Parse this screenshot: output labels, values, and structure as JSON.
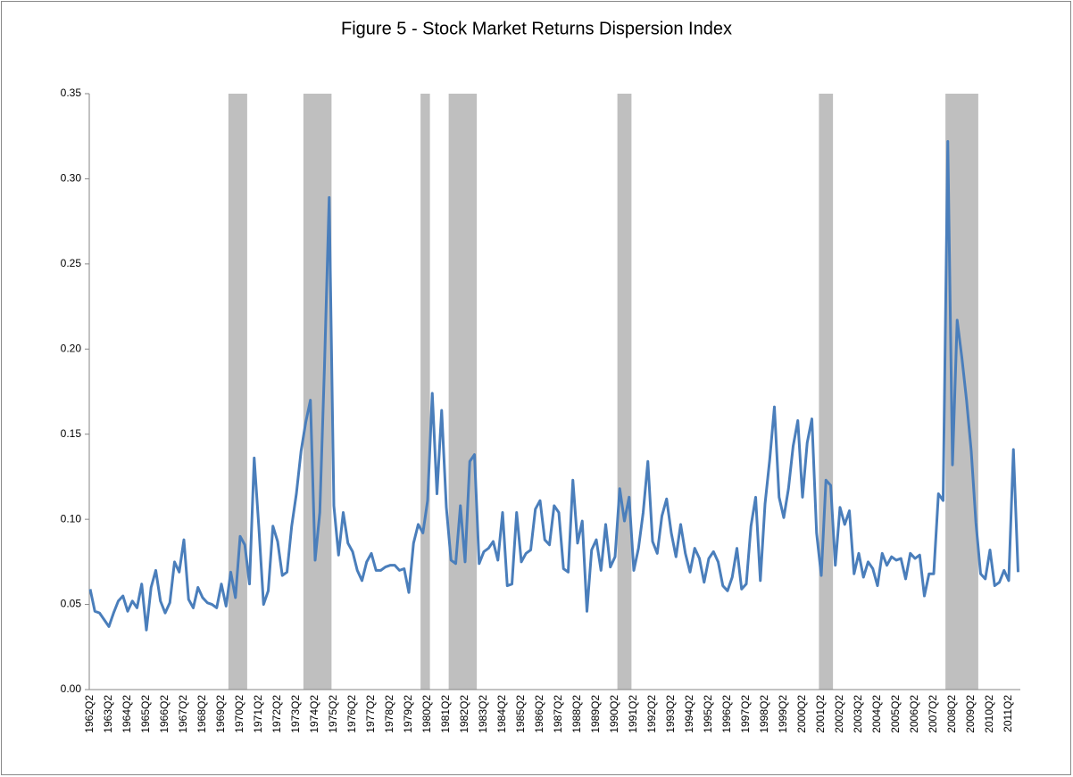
{
  "chart_data": {
    "type": "line",
    "title": "Figure 5 - Stock Market Returns Dispersion Index",
    "color": "#4a7ebb",
    "shade_color": "#bfbfbf",
    "shaded_ranges": [
      [
        30,
        34
      ],
      [
        46,
        52
      ],
      [
        71,
        73
      ],
      [
        77,
        83
      ],
      [
        113,
        116
      ],
      [
        156,
        159
      ],
      [
        183,
        190
      ]
    ],
    "ylim": [
      0,
      0.35
    ],
    "yticks": [
      {
        "value": 0,
        "label": "0.00"
      },
      0.05,
      {
        "value": 0.1,
        "label": "0.10"
      },
      0.15,
      {
        "value": 0.2,
        "label": "0.20"
      },
      0.25,
      {
        "value": 0.3,
        "label": "0.30"
      },
      0.35
    ],
    "categories": [
      "1962Q2",
      null,
      null,
      null,
      "1963Q2",
      null,
      null,
      null,
      "1964Q2",
      null,
      null,
      null,
      "1965Q2",
      null,
      null,
      null,
      "1966Q2",
      null,
      null,
      null,
      "1967Q2",
      null,
      null,
      null,
      "1968Q2",
      null,
      null,
      null,
      "1969Q2",
      null,
      null,
      null,
      "1970Q2",
      null,
      null,
      null,
      "1971Q2",
      null,
      null,
      null,
      "1972Q2",
      null,
      null,
      null,
      "1973Q2",
      null,
      null,
      null,
      "1974Q2",
      null,
      null,
      null,
      "1975Q2",
      null,
      null,
      null,
      "1976Q2",
      null,
      null,
      null,
      "1977Q2",
      null,
      null,
      null,
      "1978Q2",
      null,
      null,
      null,
      "1979Q2",
      null,
      null,
      null,
      "1980Q2",
      null,
      null,
      null,
      "1981Q2",
      null,
      null,
      null,
      "1982Q2",
      null,
      null,
      null,
      "1983Q2",
      null,
      null,
      null,
      "1984Q2",
      null,
      null,
      null,
      "1985Q2",
      null,
      null,
      null,
      "1986Q2",
      null,
      null,
      null,
      "1987Q2",
      null,
      null,
      null,
      "1988Q2",
      null,
      null,
      null,
      "1989Q2",
      null,
      null,
      null,
      "1990Q2",
      null,
      null,
      null,
      "1991Q2",
      null,
      null,
      null,
      "1992Q2",
      null,
      null,
      null,
      "1993Q2",
      null,
      null,
      null,
      "1994Q2",
      null,
      null,
      null,
      "1995Q2",
      null,
      null,
      null,
      "1996Q2",
      null,
      null,
      null,
      "1997Q2",
      null,
      null,
      null,
      "1998Q2",
      null,
      null,
      null,
      "1999Q2",
      null,
      null,
      null,
      "2000Q2",
      null,
      null,
      null,
      "2001Q2",
      null,
      null,
      null,
      "2002Q2",
      null,
      null,
      null,
      "2003Q2",
      null,
      null,
      null,
      "2004Q2",
      null,
      null,
      null,
      "2005Q2",
      null,
      null,
      null,
      "2006Q2",
      null,
      null,
      null,
      "2007Q2",
      null,
      null,
      null,
      "2008Q2",
      null,
      null,
      null,
      "2009Q2",
      null,
      null,
      null,
      "2010Q2",
      null,
      null,
      null,
      "2011Q2",
      null,
      null
    ],
    "values": [
      0.059,
      0.046,
      0.045,
      0.041,
      0.037,
      0.045,
      0.052,
      0.055,
      0.046,
      0.052,
      0.048,
      0.062,
      0.035,
      0.06,
      0.07,
      0.052,
      0.045,
      0.051,
      0.075,
      0.069,
      0.088,
      0.053,
      0.048,
      0.06,
      0.054,
      0.051,
      0.05,
      0.048,
      0.062,
      0.049,
      0.069,
      0.054,
      0.09,
      0.085,
      0.062,
      0.136,
      0.095,
      0.05,
      0.058,
      0.096,
      0.087,
      0.067,
      0.069,
      0.096,
      0.115,
      0.14,
      0.157,
      0.17,
      0.076,
      0.104,
      0.19,
      0.289,
      0.108,
      0.079,
      0.104,
      0.086,
      0.081,
      0.07,
      0.064,
      0.075,
      0.08,
      0.07,
      0.07,
      0.072,
      0.073,
      0.073,
      0.07,
      0.071,
      0.057,
      0.086,
      0.097,
      0.092,
      0.111,
      0.174,
      0.115,
      0.164,
      0.107,
      0.076,
      0.074,
      0.108,
      0.075,
      0.134,
      0.138,
      0.074,
      0.081,
      0.083,
      0.087,
      0.076,
      0.104,
      0.061,
      0.062,
      0.104,
      0.075,
      0.08,
      0.082,
      0.106,
      0.111,
      0.088,
      0.085,
      0.108,
      0.104,
      0.071,
      0.069,
      0.123,
      0.086,
      0.099,
      0.046,
      0.082,
      0.088,
      0.07,
      0.097,
      0.072,
      0.078,
      0.118,
      0.099,
      0.113,
      0.07,
      0.083,
      0.104,
      0.134,
      0.087,
      0.08,
      0.102,
      0.112,
      0.092,
      0.078,
      0.097,
      0.08,
      0.069,
      0.083,
      0.077,
      0.063,
      0.077,
      0.081,
      0.075,
      0.061,
      0.058,
      0.066,
      0.083,
      0.059,
      0.062,
      0.096,
      0.113,
      0.064,
      0.109,
      0.135,
      0.166,
      0.113,
      0.101,
      0.118,
      0.143,
      0.158,
      0.113,
      0.145,
      0.159,
      0.092,
      0.067,
      0.123,
      0.12,
      0.073,
      0.107,
      0.097,
      0.105,
      0.068,
      0.08,
      0.066,
      0.075,
      0.071,
      0.061,
      0.08,
      0.073,
      0.078,
      0.076,
      0.077,
      0.065,
      0.08,
      0.077,
      0.079,
      0.055,
      0.068,
      0.068,
      0.115,
      0.111,
      0.322,
      0.132,
      0.217,
      0.195,
      0.17,
      0.14,
      0.098,
      0.068,
      0.065,
      0.082,
      0.061,
      0.063,
      0.07,
      0.064,
      0.141,
      0.069
    ]
  }
}
